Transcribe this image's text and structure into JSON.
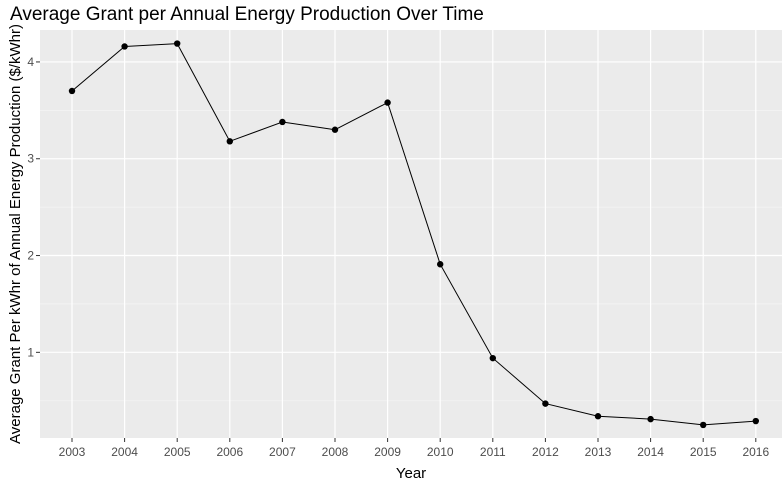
{
  "chart_data": {
    "type": "line",
    "title": "Average Grant per Annual Energy Production Over Time",
    "xlabel": "Year",
    "ylabel": "Average Grant Per kWhr of Annual Energy Production ($/kWhr)",
    "x": [
      "2003",
      "2004",
      "2005",
      "2006",
      "2007",
      "2008",
      "2009",
      "2010",
      "2011",
      "2012",
      "2013",
      "2014",
      "2015",
      "2016"
    ],
    "series": [
      {
        "values": [
          3.7,
          4.16,
          4.19,
          3.18,
          3.38,
          3.3,
          3.58,
          1.91,
          0.94,
          0.47,
          0.34,
          0.31,
          0.25,
          0.29
        ]
      }
    ],
    "yticks": [
      1,
      2,
      3,
      4
    ],
    "ylim": [
      0.115,
      4.33
    ],
    "grid": true,
    "legend": "none",
    "colors": {
      "panel": "#EBEBEB",
      "grid_major": "#FFFFFF",
      "grid_minor": "#F4F4F4",
      "line": "#000000",
      "point": "#000000",
      "tick_text": "#4D4D4D",
      "label_text": "#000000"
    }
  }
}
